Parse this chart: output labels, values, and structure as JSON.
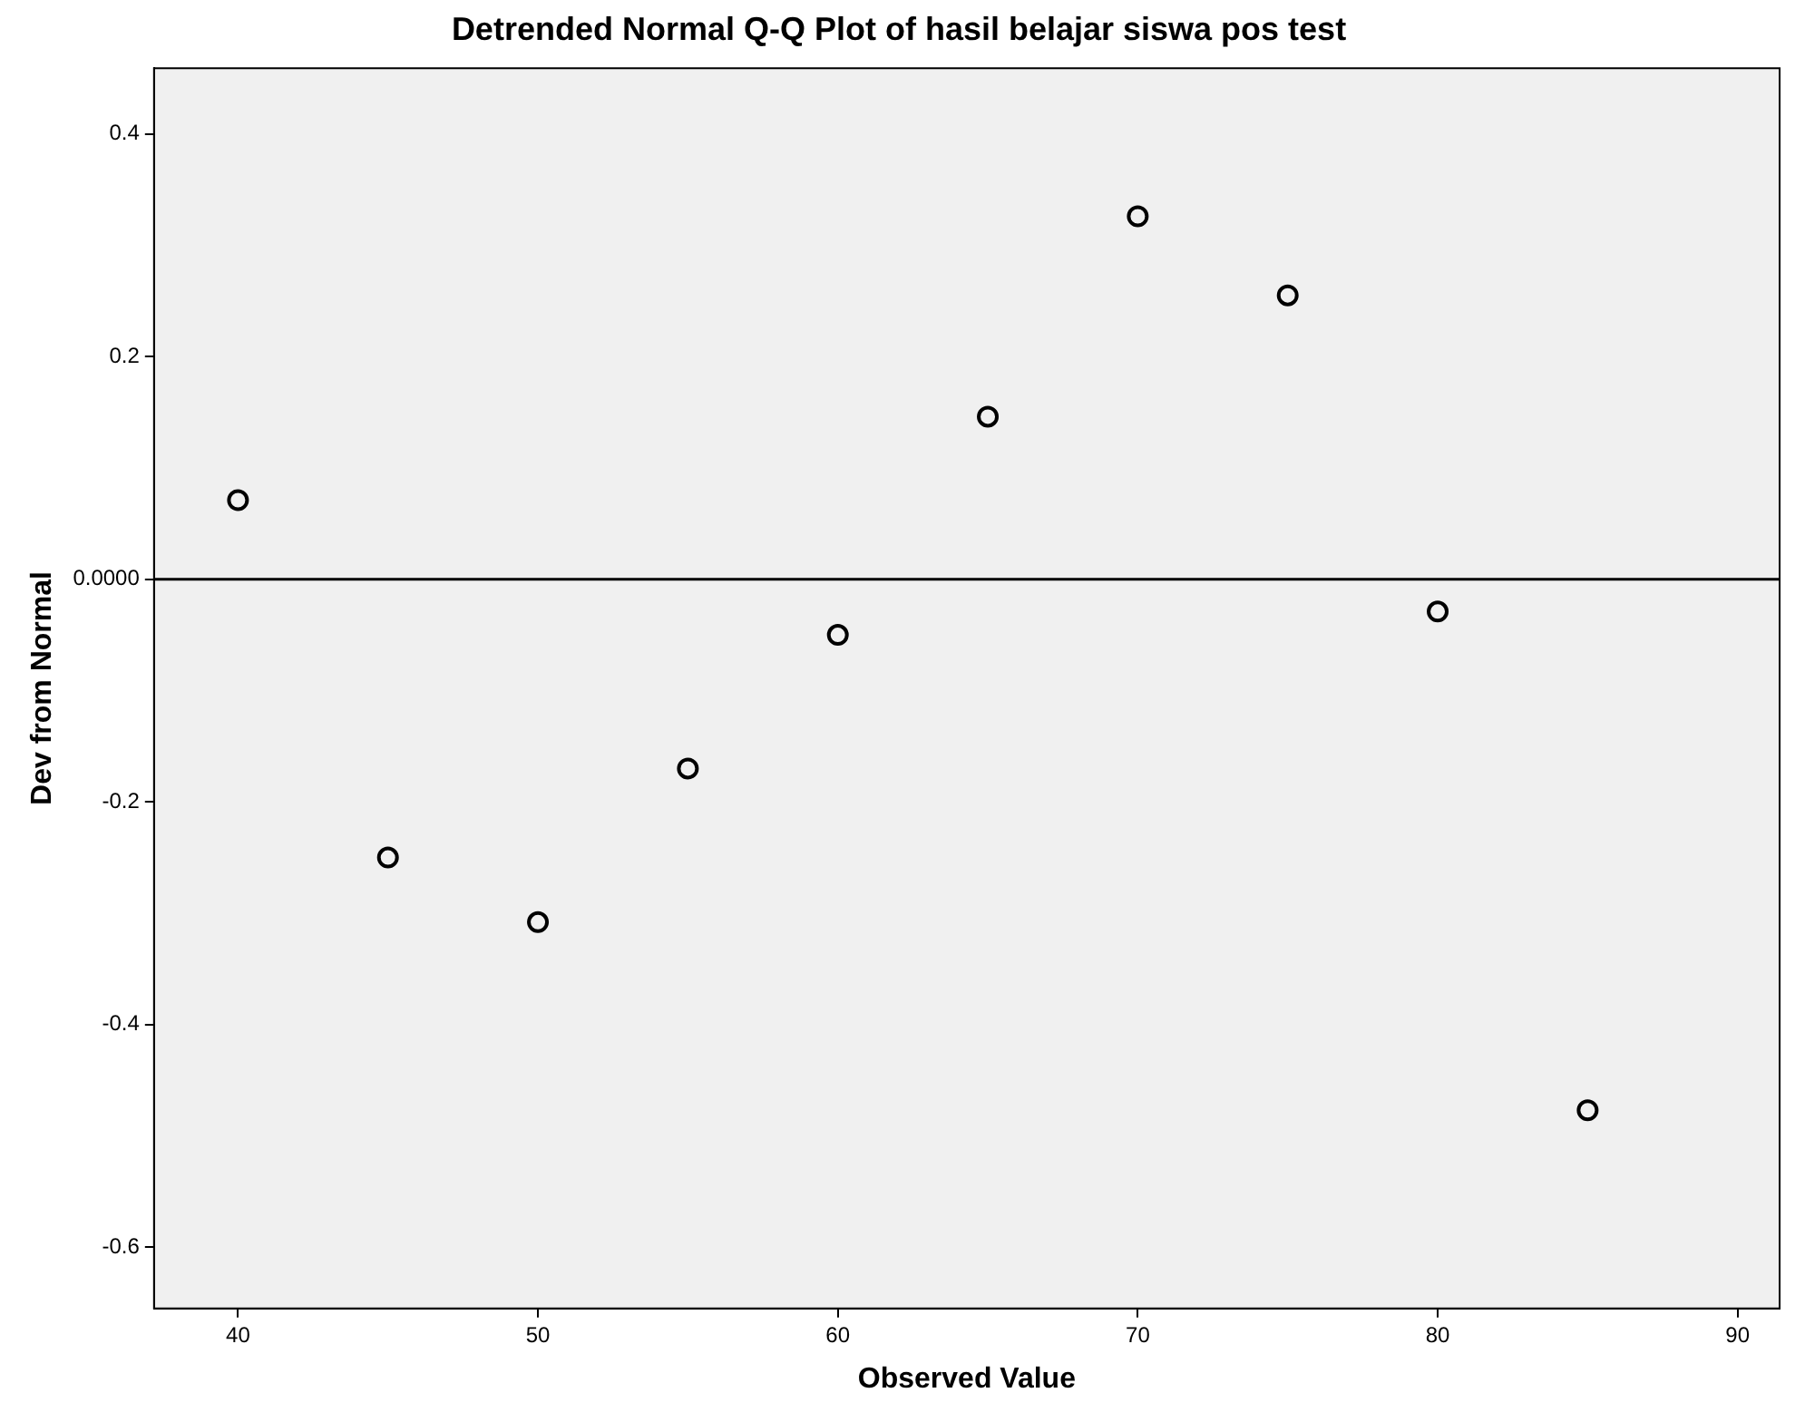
{
  "chart_data": {
    "type": "scatter",
    "title": "Detrended Normal Q-Q Plot of hasil belajar siswa pos test",
    "xlabel": "Observed Value",
    "ylabel": "Dev from Normal",
    "x": [
      40,
      45,
      50,
      55,
      60,
      65,
      70,
      75,
      80,
      85
    ],
    "series": [
      {
        "color": "#000000",
        "values": [
          0.071,
          -0.25,
          -0.308,
          -0.17,
          -0.05,
          0.146,
          0.326,
          0.255,
          -0.029,
          -0.477
        ]
      }
    ],
    "xlim": [
      37.2,
      91.4
    ],
    "xticks": [
      40,
      50,
      60,
      70,
      80,
      90
    ],
    "ylim": [
      -0.655,
      0.459
    ],
    "yticks": [
      -0.6,
      -0.4,
      -0.2,
      {
        "value": 0,
        "label": "0.0000"
      },
      0.2,
      0.4
    ],
    "ref_lines": [
      {
        "axis": "y",
        "value": 0,
        "color": "#000000"
      }
    ],
    "grid": false,
    "legend": false,
    "marker": "circle"
  }
}
